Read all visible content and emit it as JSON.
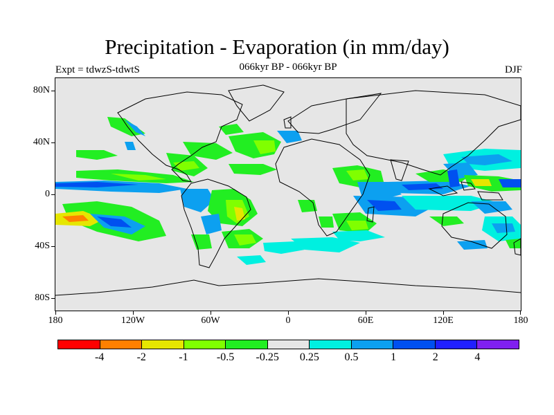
{
  "title": "Precipitation - Evaporation (in mm/day)",
  "subtitle": "066kyr BP - 066kyr BP",
  "left_label": "Expt = tdwzS-tdwtS",
  "right_label": "DJF",
  "map": {
    "lat_ticks": [
      "80N",
      "40N",
      "0",
      "40S",
      "80S"
    ],
    "lon_ticks": [
      "180",
      "120W",
      "60W",
      "0",
      "60E",
      "120E",
      "180"
    ],
    "background_color": "#e6e6e6"
  },
  "colorbar": {
    "colors": [
      "#ff0000",
      "#ff8000",
      "#e6e600",
      "#80ff00",
      "#22ee22",
      "#e6e6e6",
      "#00f0e0",
      "#0ca0f0",
      "#0050f0",
      "#2020ff",
      "#8020f0"
    ],
    "labels": [
      "-4",
      "-2",
      "-1",
      "-0.5",
      "-0.25",
      "0.25",
      "0.5",
      "1",
      "2",
      "4"
    ]
  }
}
